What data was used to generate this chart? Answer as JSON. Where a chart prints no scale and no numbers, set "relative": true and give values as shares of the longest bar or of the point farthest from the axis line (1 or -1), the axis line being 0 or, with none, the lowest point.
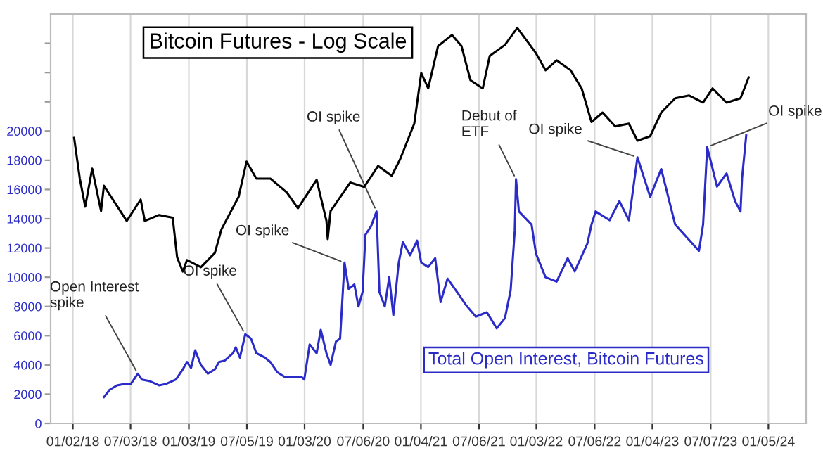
{
  "chart_data": [
    {
      "type": "line",
      "xlim": [
        "2017-10-24",
        "2024-05-03"
      ],
      "xticks": [
        {
          "value": "2018-01-02",
          "label": "01/02/18"
        },
        {
          "value": "2018-07-03",
          "label": "07/03/18"
        },
        {
          "value": "2019-01-03",
          "label": "01/03/19"
        },
        {
          "value": "2019-07-05",
          "label": "07/05/19"
        },
        {
          "value": "2020-01-03",
          "label": "01/03/20"
        },
        {
          "value": "2020-07-06",
          "label": "07/06/20"
        },
        {
          "value": "2021-01-04",
          "label": "01/04/21"
        },
        {
          "value": "2021-07-06",
          "label": "07/06/21"
        },
        {
          "value": "2022-01-03",
          "label": "01/03/22"
        },
        {
          "value": "2022-07-06",
          "label": "07/06/22"
        },
        {
          "value": "2023-01-04",
          "label": "01/04/23"
        },
        {
          "value": "2023-07-07",
          "label": "07/07/23"
        },
        {
          "value": "2024-01-05",
          "label": "01/05/24"
        }
      ],
      "ylim": [
        0,
        28000
      ],
      "yticks": [
        0,
        2000,
        4000,
        6000,
        8000,
        10000,
        12000,
        14000,
        16000,
        18000,
        20000,
        {
          "value": 22000,
          "label": null
        },
        {
          "value": 24000,
          "label": null
        },
        {
          "value": 26000,
          "label": null
        }
      ],
      "grid": "x",
      "marker": "none",
      "line_style": "solid",
      "series": [
        {
          "name": "Total Open Interest, Bitcoin Futures",
          "color": "#2b2bc8",
          "x": [
            "2018-04-10",
            "2018-04-28",
            "2018-05-21",
            "2018-06-13",
            "2018-07-04",
            "2018-07-26",
            "2018-08-08",
            "2018-08-31",
            "2018-10-01",
            "2018-10-23",
            "2018-11-23",
            "2018-12-15",
            "2018-12-28",
            "2019-01-10",
            "2019-01-23",
            "2019-02-10",
            "2019-03-04",
            "2019-03-26",
            "2019-04-08",
            "2019-04-26",
            "2019-05-22",
            "2019-05-31",
            "2019-06-13",
            "2019-06-30",
            "2019-07-18",
            "2019-08-04",
            "2019-08-31",
            "2019-09-17",
            "2019-10-09",
            "2019-10-31",
            "2019-11-22",
            "2019-12-23",
            "2020-01-02",
            "2020-01-19",
            "2020-02-10",
            "2020-02-23",
            "2020-03-12",
            "2020-03-25",
            "2020-04-11",
            "2020-04-24",
            "2020-05-08",
            "2020-05-21",
            "2020-06-08",
            "2020-06-21",
            "2020-07-04",
            "2020-07-13",
            "2020-07-31",
            "2020-08-17",
            "2020-08-26",
            "2020-09-12",
            "2020-09-26",
            "2020-10-09",
            "2020-10-26",
            "2020-11-08",
            "2020-12-01",
            "2020-12-23",
            "2021-01-05",
            "2021-01-27",
            "2021-02-18",
            "2021-03-07",
            "2021-03-29",
            "2021-05-04",
            "2021-05-26",
            "2021-06-26",
            "2021-07-31",
            "2021-08-31",
            "2021-09-26",
            "2021-10-14",
            "2021-10-27",
            "2021-10-31",
            "2021-11-09",
            "2021-12-19",
            "2022-01-02",
            "2022-02-01",
            "2022-03-08",
            "2022-04-12",
            "2022-05-04",
            "2022-06-13",
            "2022-06-26",
            "2022-07-09",
            "2022-08-22",
            "2022-09-22",
            "2022-10-22",
            "2022-11-18",
            "2022-12-28",
            "2023-02-01",
            "2023-03-17",
            "2023-05-31",
            "2023-06-13",
            "2023-06-26",
            "2023-07-27",
            "2023-08-26",
            "2023-09-22",
            "2023-10-09",
            "2023-10-14",
            "2023-10-27"
          ],
          "values": [
            1800,
            2300,
            2600,
            2700,
            2700,
            3400,
            3000,
            2900,
            2600,
            2700,
            3000,
            3700,
            4200,
            3800,
            5000,
            4000,
            3400,
            3700,
            4200,
            4300,
            4800,
            5200,
            4500,
            6100,
            5800,
            4800,
            4500,
            4200,
            3500,
            3200,
            3200,
            3200,
            3000,
            5400,
            4800,
            6400,
            4800,
            4000,
            5600,
            5800,
            11000,
            9200,
            9500,
            8000,
            9000,
            12900,
            13500,
            14500,
            9000,
            8000,
            10000,
            7400,
            11000,
            12400,
            11500,
            12500,
            11000,
            10700,
            11300,
            8300,
            9900,
            8800,
            8100,
            7300,
            7600,
            6500,
            7200,
            9100,
            13200,
            16700,
            14500,
            13600,
            11600,
            10000,
            9700,
            11300,
            10400,
            12300,
            13600,
            14500,
            13900,
            15200,
            13900,
            18200,
            15500,
            17400,
            13600,
            11800,
            13600,
            18900,
            16200,
            17100,
            15200,
            14500,
            16800,
            19700
          ]
        }
      ],
      "annotations": [
        {
          "text": "Open Interest\nspike",
          "x": "2018-07-26",
          "y": 3400
        },
        {
          "text": "OI spike",
          "x": "2019-06-30",
          "y": 6100
        },
        {
          "text": "OI spike",
          "x": "2020-05-08",
          "y": 11000
        },
        {
          "text": "OI spike",
          "x": "2020-08-17",
          "y": 14500
        },
        {
          "text": "Debut of\nETF",
          "x": "2021-10-31",
          "y": 16700
        },
        {
          "text": "OI spike",
          "x": "2022-11-18",
          "y": 18200
        },
        {
          "text": "OI spike",
          "x": "2023-06-26",
          "y": 18900
        }
      ]
    },
    {
      "type": "line",
      "title": "Bitcoin Futures - Log Scale",
      "relative": true,
      "xlim": [
        "2017-10-24",
        "2024-05-03"
      ],
      "marker": "none",
      "line_style": "solid",
      "series": [
        {
          "color": "#000000",
          "x": [
            "2018-01-06",
            "2018-01-24",
            "2018-02-10",
            "2018-03-04",
            "2018-04-01",
            "2018-04-10",
            "2018-06-21",
            "2018-08-04",
            "2018-08-17",
            "2018-10-01",
            "2018-11-13",
            "2018-11-27",
            "2018-12-15",
            "2018-12-28",
            "2019-02-10",
            "2019-03-26",
            "2019-04-16",
            "2019-06-09",
            "2019-07-04",
            "2019-08-04",
            "2019-09-17",
            "2019-11-08",
            "2019-12-13",
            "2020-02-10",
            "2020-03-12",
            "2020-03-16",
            "2020-03-25",
            "2020-05-26",
            "2020-07-09",
            "2020-08-22",
            "2020-10-04",
            "2020-10-31",
            "2020-12-14",
            "2021-01-05",
            "2021-01-27",
            "2021-02-27",
            "2021-04-12",
            "2021-05-12",
            "2021-06-09",
            "2021-07-18",
            "2021-08-09",
            "2021-09-26",
            "2021-11-04",
            "2022-01-02",
            "2022-02-01",
            "2022-03-08",
            "2022-04-21",
            "2022-05-26",
            "2022-06-26",
            "2022-07-31",
            "2022-09-09",
            "2022-10-22",
            "2022-11-18",
            "2022-12-28",
            "2023-02-01",
            "2023-03-17",
            "2023-04-30",
            "2023-06-13",
            "2023-07-13",
            "2023-08-26",
            "2023-10-09",
            "2023-11-04"
          ],
          "values": [
            0.722,
            0.619,
            0.548,
            0.644,
            0.537,
            0.601,
            0.512,
            0.566,
            0.512,
            0.527,
            0.52,
            0.42,
            0.384,
            0.413,
            0.395,
            0.431,
            0.491,
            0.573,
            0.662,
            0.619,
            0.619,
            0.584,
            0.544,
            0.616,
            0.512,
            0.466,
            0.537,
            0.609,
            0.598,
            0.651,
            0.626,
            0.669,
            0.758,
            0.886,
            0.847,
            0.954,
            0.982,
            0.954,
            0.868,
            0.847,
            0.929,
            0.957,
            1,
            0.936,
            0.893,
            0.918,
            0.893,
            0.847,
            0.762,
            0.786,
            0.751,
            0.758,
            0.715,
            0.726,
            0.786,
            0.822,
            0.829,
            0.811,
            0.847,
            0.811,
            0.822,
            0.875
          ]
        }
      ]
    }
  ]
}
